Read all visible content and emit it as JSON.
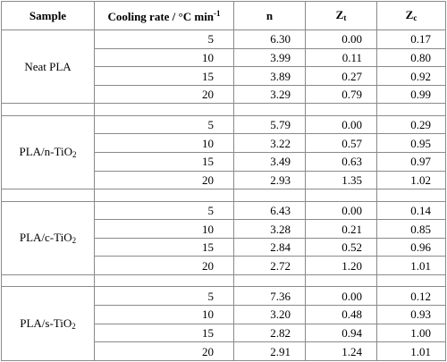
{
  "header": {
    "sample": "Sample",
    "cooling_rate": "Cooling rate / °C min",
    "cooling_rate_exp": "-1",
    "n": "n",
    "zt_base": "Z",
    "zt_sub": "t",
    "zc_base": "Z",
    "zc_sub": "c"
  },
  "groups": [
    {
      "sample": "Neat PLA",
      "sample_sub": "",
      "rows": [
        {
          "rate": "5",
          "n": "6.30",
          "zt": "0.00",
          "zc": "0.17"
        },
        {
          "rate": "10",
          "n": "3.99",
          "zt": "0.11",
          "zc": "0.80"
        },
        {
          "rate": "15",
          "n": "3.89",
          "zt": "0.27",
          "zc": "0.92"
        },
        {
          "rate": "20",
          "n": "3.29",
          "zt": "0.79",
          "zc": "0.99"
        }
      ]
    },
    {
      "sample": "PLA/n-TiO",
      "sample_sub": "2",
      "rows": [
        {
          "rate": "5",
          "n": "5.79",
          "zt": "0.00",
          "zc": "0.29"
        },
        {
          "rate": "10",
          "n": "3.22",
          "zt": "0.57",
          "zc": "0.95"
        },
        {
          "rate": "15",
          "n": "3.49",
          "zt": "0.63",
          "zc": "0.97"
        },
        {
          "rate": "20",
          "n": "2.93",
          "zt": "1.35",
          "zc": "1.02"
        }
      ]
    },
    {
      "sample": "PLA/c-TiO",
      "sample_sub": "2",
      "rows": [
        {
          "rate": "5",
          "n": "6.43",
          "zt": "0.00",
          "zc": "0.14"
        },
        {
          "rate": "10",
          "n": "3.28",
          "zt": "0.21",
          "zc": "0.85"
        },
        {
          "rate": "15",
          "n": "2.84",
          "zt": "0.52",
          "zc": "0.96"
        },
        {
          "rate": "20",
          "n": "2.72",
          "zt": "1.20",
          "zc": "1.01"
        }
      ]
    },
    {
      "sample": "PLA/s-TiO",
      "sample_sub": "2",
      "rows": [
        {
          "rate": "5",
          "n": "7.36",
          "zt": "0.00",
          "zc": "0.12"
        },
        {
          "rate": "10",
          "n": "3.20",
          "zt": "0.48",
          "zc": "0.93"
        },
        {
          "rate": "15",
          "n": "2.82",
          "zt": "0.94",
          "zc": "1.00"
        },
        {
          "rate": "20",
          "n": "2.91",
          "zt": "1.24",
          "zc": "1.01"
        }
      ]
    }
  ]
}
